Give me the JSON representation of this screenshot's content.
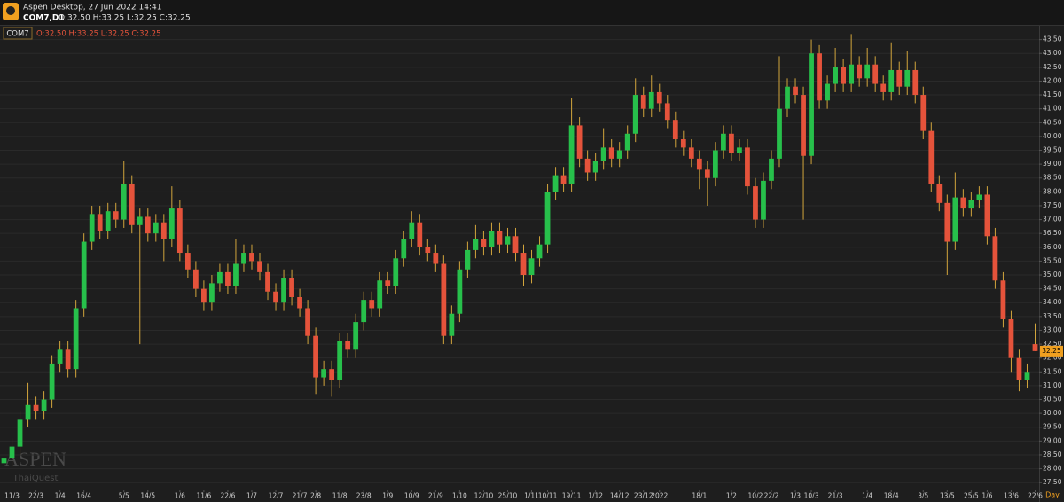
{
  "header": {
    "app": "Aspen Desktop, 27 Jun 2022 14:41",
    "symbol": "COM7,D1",
    "ohlc": "O:32.50 H:33.25 L:32.25 C:32.25"
  },
  "watermark": {
    "brand": "ASPEN",
    "sub": "ThaiQuest"
  },
  "chart_data": {
    "type": "candlestick",
    "categories": [
      null,
      "11/3",
      null,
      null,
      "22/3",
      null,
      null,
      "1/4",
      null,
      null,
      "16/4",
      null,
      null,
      null,
      null,
      "5/5",
      null,
      null,
      "14/5",
      null,
      null,
      null,
      "1/6",
      null,
      null,
      "11/6",
      null,
      null,
      "22/6",
      null,
      null,
      "1/7",
      null,
      null,
      "12/7",
      null,
      null,
      "21/7",
      null,
      "2/8",
      null,
      null,
      "11/8",
      null,
      null,
      "23/8",
      null,
      null,
      "1/9",
      null,
      null,
      "10/9",
      null,
      null,
      "21/9",
      null,
      null,
      "1/10",
      null,
      null,
      "12/10",
      null,
      null,
      "25/10",
      null,
      null,
      "1/11",
      null,
      "10/11",
      null,
      null,
      "19/11",
      null,
      null,
      "1/12",
      null,
      null,
      "14/12",
      null,
      null,
      "23/12",
      null,
      "2022",
      null,
      null,
      null,
      null,
      "18/1",
      null,
      null,
      null,
      "1/2",
      null,
      null,
      "10/2",
      null,
      "22/2",
      null,
      null,
      "1/3",
      null,
      "10/3",
      null,
      null,
      "21/3",
      null,
      null,
      null,
      "1/4",
      null,
      null,
      "18/4",
      null,
      null,
      null,
      "3/5",
      null,
      null,
      "13/5",
      null,
      null,
      "25/5",
      null,
      "1/6",
      null,
      null,
      "13/6",
      null,
      null,
      "22/6"
    ],
    "x_period": "Day",
    "series": [
      {
        "name": "COM7",
        "ohlc_label": "O:32.50 H:33.25 L:32.25 C:32.25",
        "up_color": "#27c04b",
        "down_color": "#e5533b",
        "wick_color": "#d2a53c",
        "open": [
          28.2,
          28.4,
          28.8,
          29.8,
          30.3,
          30.1,
          30.5,
          31.8,
          32.3,
          31.6,
          33.8,
          36.2,
          37.2,
          36.6,
          37.3,
          37.0,
          38.3,
          36.8,
          37.1,
          36.5,
          36.9,
          36.3,
          37.4,
          35.8,
          35.2,
          34.5,
          34.0,
          34.7,
          35.1,
          34.6,
          35.4,
          35.8,
          35.5,
          35.1,
          34.4,
          34.0,
          34.9,
          34.2,
          33.8,
          32.8,
          31.3,
          31.6,
          31.2,
          32.6,
          32.3,
          33.3,
          34.1,
          33.8,
          34.8,
          34.6,
          35.6,
          36.3,
          36.9,
          36.0,
          35.8,
          35.4,
          32.8,
          33.6,
          35.2,
          35.9,
          36.3,
          36.0,
          36.6,
          36.1,
          36.4,
          35.8,
          35.0,
          35.6,
          36.1,
          38.0,
          38.6,
          38.3,
          40.4,
          39.2,
          38.7,
          39.1,
          39.6,
          39.2,
          39.5,
          40.1,
          41.5,
          41.0,
          41.6,
          41.2,
          40.6,
          39.9,
          39.6,
          39.2,
          38.8,
          38.5,
          39.5,
          40.1,
          39.4,
          39.6,
          38.2,
          37.0,
          38.4,
          39.2,
          41.0,
          41.8,
          41.5,
          39.3,
          43.0,
          41.3,
          41.9,
          42.5,
          41.9,
          42.6,
          42.1,
          42.6,
          41.9,
          41.6,
          42.4,
          41.8,
          42.4,
          41.5,
          40.2,
          38.3,
          37.6,
          36.2,
          37.8,
          37.4,
          37.7,
          37.9,
          36.4,
          34.8,
          33.4,
          32.0,
          31.2,
          32.5
        ],
        "high": [
          28.7,
          29.1,
          30.1,
          31.1,
          30.6,
          30.8,
          32.1,
          32.6,
          32.6,
          34.1,
          36.5,
          37.5,
          37.5,
          37.6,
          37.6,
          39.1,
          38.6,
          37.4,
          37.4,
          37.2,
          37.2,
          38.2,
          37.7,
          36.1,
          35.5,
          34.8,
          35.0,
          35.4,
          35.4,
          36.3,
          36.1,
          36.1,
          35.8,
          35.4,
          34.7,
          35.2,
          35.2,
          34.5,
          34.1,
          33.1,
          31.9,
          31.9,
          32.9,
          32.9,
          33.6,
          34.4,
          34.4,
          35.1,
          35.1,
          35.9,
          36.6,
          37.3,
          37.2,
          36.3,
          36.1,
          35.7,
          33.9,
          35.5,
          36.2,
          36.8,
          36.6,
          36.9,
          36.9,
          36.7,
          36.7,
          36.1,
          35.9,
          36.4,
          38.3,
          38.9,
          38.9,
          41.4,
          40.7,
          39.5,
          39.4,
          40.3,
          39.9,
          39.8,
          40.4,
          42.1,
          41.8,
          42.2,
          41.9,
          41.5,
          40.9,
          40.2,
          39.9,
          39.5,
          39.1,
          39.8,
          40.4,
          40.4,
          39.9,
          39.9,
          38.5,
          38.7,
          39.5,
          42.9,
          42.1,
          42.1,
          41.8,
          43.5,
          43.3,
          42.2,
          43.2,
          42.8,
          43.7,
          42.9,
          43.2,
          42.9,
          42.2,
          43.4,
          42.7,
          43.1,
          42.7,
          41.8,
          40.5,
          38.6,
          37.9,
          38.7,
          38.1,
          38.0,
          38.2,
          38.2,
          36.7,
          35.1,
          33.7,
          32.3,
          31.8,
          33.25
        ],
        "low": [
          27.9,
          28.1,
          28.5,
          29.5,
          29.8,
          29.8,
          30.2,
          31.5,
          31.3,
          31.3,
          33.5,
          35.9,
          36.3,
          36.3,
          36.7,
          36.7,
          36.5,
          32.5,
          36.2,
          36.2,
          35.5,
          36.0,
          35.5,
          34.9,
          34.2,
          33.7,
          33.7,
          34.4,
          34.3,
          34.3,
          35.1,
          35.2,
          34.8,
          34.1,
          33.7,
          33.7,
          33.9,
          33.5,
          32.5,
          30.7,
          31.0,
          30.6,
          30.9,
          32.0,
          32.0,
          33.0,
          33.5,
          33.5,
          34.3,
          34.3,
          35.3,
          36.0,
          35.7,
          35.5,
          35.1,
          32.5,
          32.5,
          33.3,
          34.9,
          35.6,
          35.7,
          35.7,
          35.8,
          35.8,
          35.5,
          34.6,
          34.7,
          35.3,
          35.8,
          37.7,
          38.0,
          38.0,
          38.9,
          38.4,
          38.4,
          38.8,
          38.9,
          38.9,
          39.2,
          39.8,
          40.7,
          40.7,
          40.9,
          40.3,
          39.6,
          39.3,
          38.9,
          38.1,
          37.5,
          38.2,
          39.2,
          39.1,
          39.1,
          37.9,
          36.7,
          36.7,
          38.1,
          38.9,
          40.7,
          41.2,
          37.0,
          39.0,
          41.0,
          41.0,
          41.6,
          41.6,
          41.6,
          41.8,
          41.8,
          41.6,
          41.3,
          41.3,
          41.5,
          41.5,
          41.2,
          39.9,
          38.0,
          37.3,
          35.0,
          35.9,
          37.1,
          37.1,
          37.4,
          36.1,
          34.5,
          33.1,
          31.5,
          30.8,
          30.9,
          32.25
        ],
        "close": [
          28.4,
          28.8,
          29.8,
          30.3,
          30.1,
          30.5,
          31.8,
          32.3,
          31.6,
          33.8,
          36.2,
          37.2,
          36.6,
          37.3,
          37.0,
          38.3,
          36.8,
          37.1,
          36.5,
          36.9,
          36.3,
          37.4,
          35.8,
          35.2,
          34.5,
          34.0,
          34.7,
          35.1,
          34.6,
          35.4,
          35.8,
          35.5,
          35.1,
          34.4,
          34.0,
          34.9,
          34.2,
          33.8,
          32.8,
          31.3,
          31.6,
          31.2,
          32.6,
          32.3,
          33.3,
          34.1,
          33.8,
          34.8,
          34.6,
          35.6,
          36.3,
          36.9,
          36.0,
          35.8,
          35.4,
          32.8,
          33.6,
          35.2,
          35.9,
          36.3,
          36.0,
          36.6,
          36.1,
          36.4,
          35.8,
          35.0,
          35.6,
          36.1,
          38.0,
          38.6,
          38.3,
          40.4,
          39.2,
          38.7,
          39.1,
          39.6,
          39.2,
          39.5,
          40.1,
          41.5,
          41.0,
          41.6,
          41.2,
          40.6,
          39.9,
          39.6,
          39.2,
          38.8,
          38.5,
          39.5,
          40.1,
          39.4,
          39.6,
          38.2,
          37.0,
          38.4,
          39.2,
          41.0,
          41.8,
          41.5,
          39.3,
          43.0,
          41.3,
          41.9,
          42.5,
          41.9,
          42.6,
          42.1,
          42.6,
          41.9,
          41.6,
          42.4,
          41.8,
          42.4,
          41.5,
          40.2,
          38.3,
          37.6,
          36.2,
          37.8,
          37.4,
          37.7,
          37.9,
          36.4,
          34.8,
          33.4,
          32.0,
          31.2,
          31.5,
          32.25
        ]
      }
    ],
    "ylim": [
      27.25,
      44.0
    ],
    "yticks": [
      {
        "value": 27.5,
        "label": "27.50"
      },
      {
        "value": 28,
        "label": "28.00"
      },
      {
        "value": 28.5,
        "label": "28.50"
      },
      {
        "value": 29,
        "label": "29.00"
      },
      {
        "value": 29.5,
        "label": "29.50"
      },
      {
        "value": 30,
        "label": "30.00"
      },
      {
        "value": 30.5,
        "label": "30.50"
      },
      {
        "value": 31,
        "label": "31.00"
      },
      {
        "value": 31.5,
        "label": "31.50"
      },
      {
        "value": 32,
        "label": "32.00"
      },
      {
        "value": 32.5,
        "label": "32.50"
      },
      {
        "value": 33,
        "label": "33.00"
      },
      {
        "value": 33.5,
        "label": "33.50"
      },
      {
        "value": 34,
        "label": "34.00"
      },
      {
        "value": 34.5,
        "label": "34.50"
      },
      {
        "value": 35,
        "label": "35.00"
      },
      {
        "value": 35.5,
        "label": "35.50"
      },
      {
        "value": 36,
        "label": "36.00"
      },
      {
        "value": 36.5,
        "label": "36.50"
      },
      {
        "value": 37,
        "label": "37.00"
      },
      {
        "value": 37.5,
        "label": "37.50"
      },
      {
        "value": 38,
        "label": "38.00"
      },
      {
        "value": 38.5,
        "label": "38.50"
      },
      {
        "value": 39,
        "label": "39.00"
      },
      {
        "value": 39.5,
        "label": "39.50"
      },
      {
        "value": 40,
        "label": "40.00"
      },
      {
        "value": 40.5,
        "label": "40.50"
      },
      {
        "value": 41,
        "label": "41.00"
      },
      {
        "value": 41.5,
        "label": "41.50"
      },
      {
        "value": 42,
        "label": "42.00"
      },
      {
        "value": 42.5,
        "label": "42.50"
      },
      {
        "value": 43,
        "label": "43.00"
      },
      {
        "value": 43.5,
        "label": "43.50"
      }
    ],
    "grid": true,
    "last_price_color": "#f0a020"
  }
}
